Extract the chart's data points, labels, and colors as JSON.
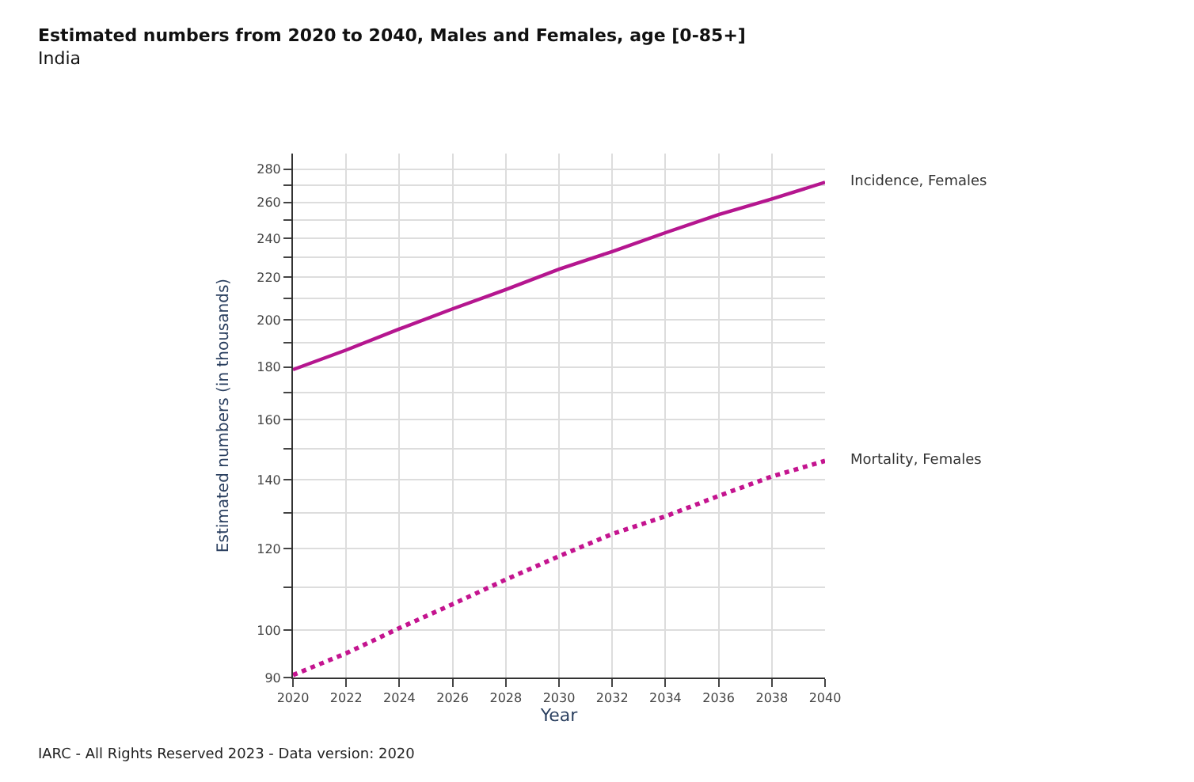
{
  "chart_data": {
    "type": "line",
    "title": "Estimated numbers from 2020 to 2040, Males and Females, age [0-85+]",
    "subtitle": "India",
    "xlabel": "Year",
    "ylabel": "Estimated numbers (in thousands)",
    "x": [
      2020,
      2022,
      2024,
      2026,
      2028,
      2030,
      2032,
      2034,
      2036,
      2038,
      2040
    ],
    "series": [
      {
        "name": "Incidence, Females",
        "color": "#b5168f",
        "line_style": "solid",
        "values": [
          179,
          187,
          196,
          205,
          214,
          224,
          233,
          243,
          253,
          262,
          272
        ]
      },
      {
        "name": "Mortality, Females",
        "color": "#c4148f",
        "line_style": "dotted",
        "values": [
          90.5,
          95,
          100.5,
          106,
          112,
          118,
          124,
          129,
          135,
          141,
          146
        ]
      }
    ],
    "log": "y",
    "xlim": [
      2020,
      2040
    ],
    "ylim": [
      90,
      290
    ],
    "xticks": [
      2020,
      2022,
      2024,
      2026,
      2028,
      2030,
      2032,
      2034,
      2036,
      2038,
      2040
    ],
    "yticks": [
      90,
      100,
      {
        "value": 110,
        "label": null
      },
      120,
      {
        "value": 130,
        "label": null
      },
      140,
      {
        "value": 150,
        "label": null
      },
      160,
      {
        "value": 170,
        "label": null
      },
      180,
      {
        "value": 190,
        "label": null
      },
      200,
      {
        "value": 210,
        "label": null
      },
      220,
      {
        "value": 230,
        "label": null
      },
      240,
      {
        "value": 250,
        "label": null
      },
      260,
      {
        "value": 270,
        "label": null
      },
      280
    ],
    "grid": true,
    "legend": false,
    "marker": "none",
    "annotations": [
      "IARC - All Rights Reserved 2023 - Data version: 2020"
    ]
  }
}
